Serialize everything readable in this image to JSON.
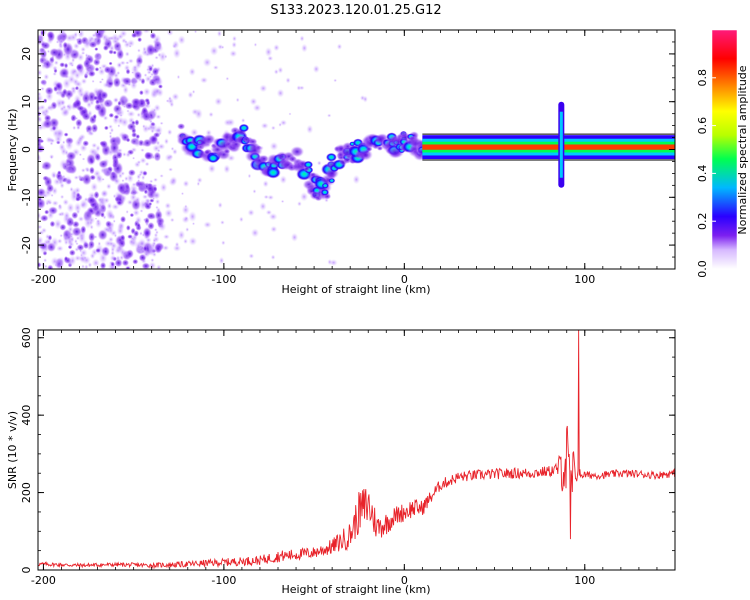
{
  "title": "S133.2023.120.01.25.G12",
  "colors": {
    "snr_line": "#e8232a",
    "spectro_purple": "#6a1ee0",
    "band": "#ff3b00"
  },
  "chart_data": [
    {
      "type": "heatmap",
      "xlabel": "Height of straight line (km)",
      "ylabel": "Frequency (Hz)",
      "xlim": [
        -203,
        150
      ],
      "ylim": [
        -25,
        25
      ],
      "x_ticks": [
        -200,
        -100,
        0,
        100
      ],
      "x_tick_labels": [
        "-200",
        "-100",
        "0",
        "100"
      ],
      "y_ticks": [
        -20,
        -10,
        0,
        10,
        20
      ],
      "y_tick_labels": [
        "-20",
        "-10",
        "0",
        "10",
        "20"
      ],
      "colorbar": {
        "label": "Normalized spectral amplitude",
        "range": [
          0,
          1
        ],
        "ticks": [
          0.0,
          0.2,
          0.4,
          0.6,
          0.8
        ],
        "tick_labels": [
          "0.0",
          "0.2",
          "0.4",
          "0.6",
          "0.8"
        ],
        "colors": [
          "#ffffff",
          "#d6b8ff",
          "#7c20f0",
          "#2a00ff",
          "#00b8ff",
          "#00ff50",
          "#b8ff00",
          "#ffff00",
          "#ff8c00",
          "#ff0000",
          "#ff1a7a"
        ]
      },
      "features": [
        {
          "kind": "noise",
          "x_range": [
            -203,
            -135
          ],
          "freq_range": [
            -25,
            25
          ],
          "amplitude": 0.25
        },
        {
          "kind": "sparse_noise",
          "x_range": [
            -135,
            -20
          ],
          "freq_range": [
            -25,
            25
          ],
          "amplitude": 0.08
        },
        {
          "kind": "blob_track",
          "points": [
            [
              -125,
              3
            ],
            [
              -115,
              1
            ],
            [
              -105,
              0
            ],
            [
              -95,
              2
            ],
            [
              -88,
              3
            ],
            [
              -80,
              -3
            ],
            [
              -72,
              -4
            ],
            [
              -60,
              -2
            ],
            [
              -50,
              -7
            ],
            [
              -45,
              -9
            ],
            [
              -38,
              -2
            ],
            [
              -30,
              -1
            ],
            [
              -25,
              0
            ],
            [
              -15,
              1
            ],
            [
              -5,
              1
            ],
            [
              0,
              2
            ],
            [
              5,
              1
            ],
            [
              10,
              0
            ]
          ],
          "amplitude": 0.55
        },
        {
          "kind": "band",
          "x_range": [
            10,
            150
          ],
          "freq": 0.5,
          "width": 2.5,
          "amplitude": 0.95
        },
        {
          "kind": "spike",
          "x": 87,
          "freq_range": [
            -8,
            10
          ],
          "amplitude": 0.5
        }
      ]
    },
    {
      "type": "line",
      "xlabel": "Height of straight line (km)",
      "ylabel": "SNR (10 * v/v)",
      "xlim": [
        -203,
        150
      ],
      "ylim": [
        0,
        620
      ],
      "x_ticks": [
        -200,
        -100,
        0,
        100
      ],
      "x_tick_labels": [
        "-200",
        "-100",
        "0",
        "100"
      ],
      "y_ticks": [
        0,
        200,
        400,
        600
      ],
      "y_tick_labels": [
        "0",
        "200",
        "400",
        "600"
      ],
      "series": [
        {
          "x": [
            -200,
            -180,
            -160,
            -140,
            -120,
            -100,
            -80,
            -70,
            -60,
            -50,
            -40,
            -30,
            -25,
            -20,
            -15,
            -10,
            -5,
            0,
            5,
            10,
            15,
            20,
            30,
            40,
            50,
            60,
            70,
            80,
            85,
            90,
            92,
            94,
            96,
            100,
            110,
            120,
            130,
            140,
            150
          ],
          "values": [
            15,
            12,
            14,
            12,
            15,
            20,
            25,
            35,
            40,
            45,
            60,
            90,
            150,
            170,
            110,
            120,
            140,
            150,
            160,
            160,
            190,
            220,
            240,
            245,
            248,
            250,
            250,
            255,
            260,
            280,
            150,
            250,
            250,
            245,
            245,
            250,
            248,
            245,
            250
          ],
          "noise": [
            5,
            5,
            5,
            6,
            8,
            10,
            12,
            15,
            15,
            15,
            20,
            35,
            55,
            60,
            35,
            30,
            25,
            25,
            25,
            20,
            18,
            15,
            14,
            14,
            14,
            14,
            14,
            14,
            20,
            120,
            200,
            60,
            15,
            10,
            10,
            10,
            10,
            10,
            10
          ]
        }
      ]
    }
  ]
}
